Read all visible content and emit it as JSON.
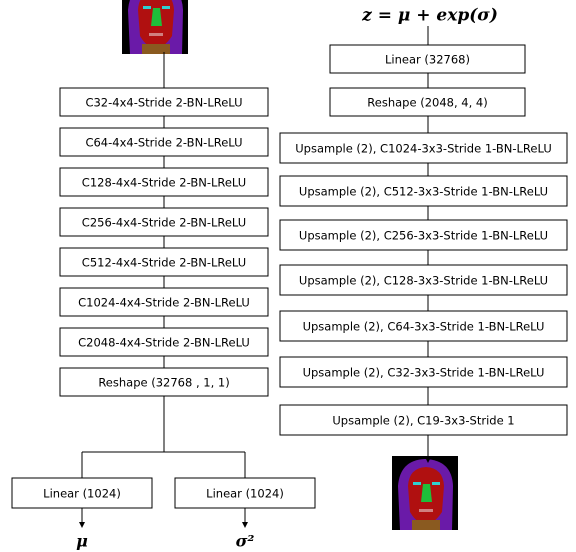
{
  "equation": "z = μ + exp(σ)",
  "encoder": {
    "layers": [
      "C32-4x4-Stride 2-BN-LReLU",
      "C64-4x4-Stride 2-BN-LReLU",
      "C128-4x4-Stride 2-BN-LReLU",
      "C256-4x4-Stride 2-BN-LReLU",
      "C512-4x4-Stride 2-BN-LReLU",
      "C1024-4x4-Stride 2-BN-LReLU",
      "C2048-4x4-Stride 2-BN-LReLU",
      "Reshape (32768 , 1, 1)"
    ],
    "heads": [
      "Linear (1024)",
      "Linear (1024)"
    ],
    "outputs": [
      "μ",
      "σ²"
    ]
  },
  "decoder": {
    "layers": [
      "Linear (32768)",
      "Reshape (2048, 4, 4)",
      "Upsample (2), C1024-3x3-Stride 1-BN-LReLU",
      "Upsample (2), C512-3x3-Stride 1-BN-LReLU",
      "Upsample (2), C256-3x3-Stride 1-BN-LReLU",
      "Upsample (2), C128-3x3-Stride 1-BN-LReLU",
      "Upsample (2), C64-3x3-Stride 1-BN-LReLU",
      "Upsample (2), C32-3x3-Stride 1-BN-LReLU",
      "Upsample (2), C19-3x3-Stride 1"
    ]
  }
}
